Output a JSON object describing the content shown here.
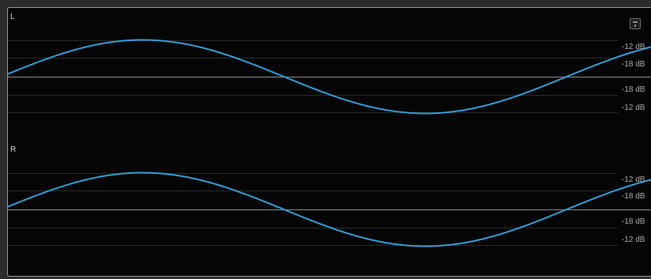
{
  "channels": [
    {
      "label": "L",
      "db_labels": [
        "-12 dB",
        "-18 dB",
        "-18 dB",
        "-12 dB"
      ]
    },
    {
      "label": "R",
      "db_labels": [
        "-12 dB",
        "-18 dB",
        "-18 dB",
        "-12 dB"
      ]
    }
  ],
  "colors": {
    "waveform": "#2f9fd6",
    "background": "#050505",
    "gridline": "#2a2a2a",
    "centerline": "#8a8a8a",
    "label": "#a8a8a8"
  },
  "toolbar": {
    "settings_icon": "settings-icon"
  }
}
